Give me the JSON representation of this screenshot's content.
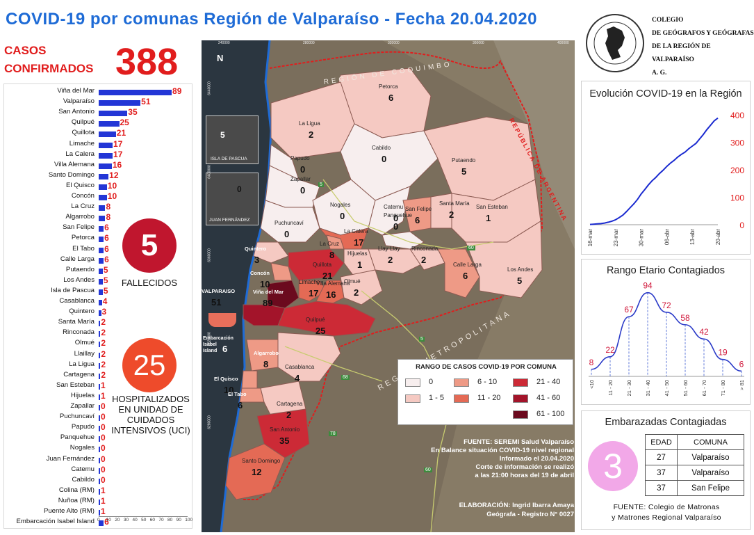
{
  "header": {
    "title": "COVID-19 por comunas Región de Valparaíso - Fecha 20.04.2020",
    "casos_label_1": "CASOS",
    "casos_label_2": "CONFIRMADOS",
    "casos_value": "388"
  },
  "fallecidos": {
    "value": "5",
    "label": "FALLECIDOS"
  },
  "hospitalizados": {
    "value": "25",
    "label": "HOSPITALIZADOS EN UNIDAD DE CUIDADOS INTENSIVOS (UCI)"
  },
  "colors": {
    "title_blue": "#1e6bd6",
    "accent_red": "#e11d1d",
    "bar_blue": "#2336d6",
    "fallecidos_red": "#c0162e",
    "hosp_orange": "#ee4b2b",
    "embarazadas_pink": "#f2a8e8"
  },
  "chart_data": [
    {
      "type": "bar",
      "orientation": "horizontal",
      "categories": [
        "Viña del Mar",
        "Valparaíso",
        "San Antonio",
        "Quilpué",
        "Quillota",
        "Limache",
        "La Calera",
        "Villa Alemana",
        "Santo Domingo",
        "El Quisco",
        "Concón",
        "La Cruz",
        "Algarrobo",
        "San Felipe",
        "Petorca",
        "El Tabo",
        "Calle Larga",
        "Putaendo",
        "Los Andes",
        "Isla de Pascua",
        "Casablanca",
        "Quintero",
        "Santa María",
        "Rinconada",
        "Olmué",
        "Llaillay",
        "La Ligua",
        "Cartagena",
        "San Esteban",
        "Hijuelas",
        "Zapallar",
        "Puchuncaví",
        "Papudo",
        "Panquehue",
        "Nogales",
        "Juan Fernández",
        "Catemu",
        "Cabildo",
        "Colina (RM)",
        "Nuñoa (RM)",
        "Puente Alto (RM)",
        "Embarcación Isabel Island"
      ],
      "values": [
        89,
        51,
        35,
        25,
        21,
        17,
        17,
        16,
        12,
        10,
        10,
        8,
        8,
        6,
        6,
        6,
        6,
        5,
        5,
        5,
        4,
        3,
        2,
        2,
        2,
        2,
        2,
        2,
        1,
        1,
        0,
        0,
        0,
        0,
        0,
        0,
        0,
        0,
        1,
        1,
        1,
        6
      ],
      "value_labels": [
        "89",
        "51",
        "35",
        "25",
        "21",
        "17",
        "17",
        "16",
        "12",
        "10",
        "10",
        "8",
        "8",
        "6",
        "6",
        "6",
        "6",
        "5",
        "5",
        "5",
        "4",
        "3",
        "2",
        "2",
        "2",
        "2",
        "2",
        "2",
        "1",
        "1",
        "0",
        "0",
        "0",
        "0",
        "0",
        "0",
        "0",
        "0",
        "1",
        "1",
        "1",
        "6"
      ],
      "xlim": [
        0,
        100
      ],
      "x_ticks": [
        "0",
        "10",
        "20",
        "30",
        "40",
        "50",
        "60",
        "70",
        "80",
        "90",
        "100"
      ]
    },
    {
      "type": "line",
      "title": "Evolución COVID-19 en la Región",
      "x_ticks": [
        "16-mar",
        "23-mar",
        "30-mar",
        "06-abr",
        "13-abr",
        "20-abr"
      ],
      "y_ticks": [
        "0",
        "100",
        "200",
        "300",
        "400"
      ],
      "ylim": [
        0,
        400
      ],
      "x": [
        "16-mar",
        "17-mar",
        "18-mar",
        "19-mar",
        "20-mar",
        "21-mar",
        "22-mar",
        "23-mar",
        "24-mar",
        "25-mar",
        "26-mar",
        "27-mar",
        "28-mar",
        "29-mar",
        "30-mar",
        "31-mar",
        "01-abr",
        "02-abr",
        "03-abr",
        "04-abr",
        "05-abr",
        "06-abr",
        "07-abr",
        "08-abr",
        "09-abr",
        "10-abr",
        "11-abr",
        "12-abr",
        "13-abr",
        "14-abr",
        "15-abr",
        "16-abr",
        "17-abr",
        "18-abr",
        "19-abr",
        "20-abr"
      ],
      "values": [
        1,
        2,
        3,
        4,
        6,
        9,
        13,
        18,
        26,
        35,
        48,
        62,
        76,
        92,
        112,
        128,
        145,
        160,
        172,
        186,
        198,
        212,
        224,
        234,
        246,
        256,
        264,
        276,
        286,
        296,
        312,
        328,
        346,
        362,
        378,
        388
      ]
    },
    {
      "type": "line",
      "title": "Rango Etario Contagiados",
      "categories": [
        "<10",
        "11 - 20",
        "21 - 30",
        "31 - 40",
        "41 - 50",
        "51 - 60",
        "61 - 70",
        "71 - 80",
        "> 81"
      ],
      "values": [
        8,
        22,
        67,
        94,
        72,
        58,
        42,
        19,
        6
      ],
      "value_labels": [
        "8",
        "22",
        "67",
        "94",
        "72",
        "58",
        "42",
        "19",
        "6"
      ]
    }
  ],
  "embarazadas": {
    "title": "Embarazadas Contagiadas",
    "count": "3",
    "col_edad": "EDAD",
    "col_comuna": "COMUNA",
    "rows": [
      {
        "edad": "27",
        "comuna": "Valparaíso"
      },
      {
        "edad": "37",
        "comuna": "Valparaíso"
      },
      {
        "edad": "37",
        "comuna": "San Felipe"
      }
    ],
    "source_1": "FUENTE: Colegio de Matronas",
    "source_2": "y Matrones Regional Valparaíso"
  },
  "logo": {
    "ring_text": "COLEGIO DE GEÓGRAFOS · REGIÓN DE VALPARAÍSO",
    "line1": "COLEGIO",
    "line2": "DE GEÓGRAFOS Y GEÓGRAFAS",
    "line3": "DE LA REGIÓN DE VALPARAÍSO",
    "line4": "A. G."
  },
  "map": {
    "legend_title": "RANGO DE CASOS COVID-19 POR COMUNA",
    "legend": [
      {
        "label": "0",
        "color": "#f7eeee"
      },
      {
        "label": "1 - 5",
        "color": "#f5c9c2"
      },
      {
        "label": "6 - 10",
        "color": "#ee9a86"
      },
      {
        "label": "11 - 20",
        "color": "#e46a55"
      },
      {
        "label": "21 - 40",
        "color": "#cc2a36"
      },
      {
        "label": "41 - 60",
        "color": "#a3142a"
      },
      {
        "label": "61 - 100",
        "color": "#6b0a1e"
      }
    ],
    "source_lines": [
      "FUENTE: SEREMI Salud Valparaíso",
      "En Balance situación COVID-19 nivel regional",
      "Informado el 20.04.2020",
      "Corte de información se realizó",
      "a las 21:00 horas del 19 de abril"
    ],
    "credit_lines": [
      "ELABORACIÓN: Ingrid Ibarra Amaya",
      "Geógrafa - Registro N° 0027"
    ],
    "region_labels": [
      "REGIÓN DE COQUIMBO",
      "REPÚBLICA DE ARGENTINA",
      "REGIÓN METROPOLITANA"
    ],
    "north": "N",
    "inset_pascua": {
      "name": "ISLA DE PASCUA",
      "value": "5"
    },
    "inset_juan": {
      "name": "JUAN FERNÁNDEZ",
      "value": "0"
    },
    "embarcacion": {
      "name": "Embarcación Isabel Island",
      "value": "6"
    },
    "top_coords": [
      "240000",
      "280000",
      "320000",
      "360000",
      "400000"
    ],
    "left_coords": [
      "6440000",
      "6400000",
      "6360000",
      "6320000",
      "6280000"
    ],
    "road_labels": [
      "5",
      "60",
      "68",
      "78",
      "5",
      "60"
    ],
    "comunas": [
      {
        "name": "Petorca",
        "value": "6"
      },
      {
        "name": "La Ligua",
        "value": "2"
      },
      {
        "name": "Cabildo",
        "value": "0"
      },
      {
        "name": "Papudo",
        "value": "0"
      },
      {
        "name": "Zapallar",
        "value": "0"
      },
      {
        "name": "Putaendo",
        "value": "5"
      },
      {
        "name": "Nogales",
        "value": "0"
      },
      {
        "name": "Catemu",
        "value": "0"
      },
      {
        "name": "San Felipe",
        "value": "6"
      },
      {
        "name": "Santa María",
        "value": "2"
      },
      {
        "name": "San Esteban",
        "value": "1"
      },
      {
        "name": "Puchuncaví",
        "value": "0"
      },
      {
        "name": "Panquehue",
        "value": "0"
      },
      {
        "name": "La Calera",
        "value": "17"
      },
      {
        "name": "La Cruz",
        "value": "8"
      },
      {
        "name": "Quintero",
        "value": "3"
      },
      {
        "name": "Quillota",
        "value": "21"
      },
      {
        "name": "Hijuelas",
        "value": "1"
      },
      {
        "name": "Llay Llay",
        "value": "2"
      },
      {
        "name": "Rinconada",
        "value": "2"
      },
      {
        "name": "Calle Larga",
        "value": "6"
      },
      {
        "name": "Los Andes",
        "value": "5"
      },
      {
        "name": "Concón",
        "value": "10"
      },
      {
        "name": "Viña del Mar",
        "value": "89"
      },
      {
        "name": "Limache",
        "value": "17"
      },
      {
        "name": "Villa Alemana",
        "value": "16"
      },
      {
        "name": "Olmué",
        "value": "2"
      },
      {
        "name": "VALPARAISO",
        "value": "51"
      },
      {
        "name": "Quilpué",
        "value": "25"
      },
      {
        "name": "Algarrobo",
        "value": "8"
      },
      {
        "name": "Casablanca",
        "value": "4"
      },
      {
        "name": "El Quisco",
        "value": "10"
      },
      {
        "name": "El Tabo",
        "value": "6"
      },
      {
        "name": "Cartagena",
        "value": "2"
      },
      {
        "name": "San Antonio",
        "value": "35"
      },
      {
        "name": "Santo Domingo",
        "value": "12"
      }
    ]
  }
}
